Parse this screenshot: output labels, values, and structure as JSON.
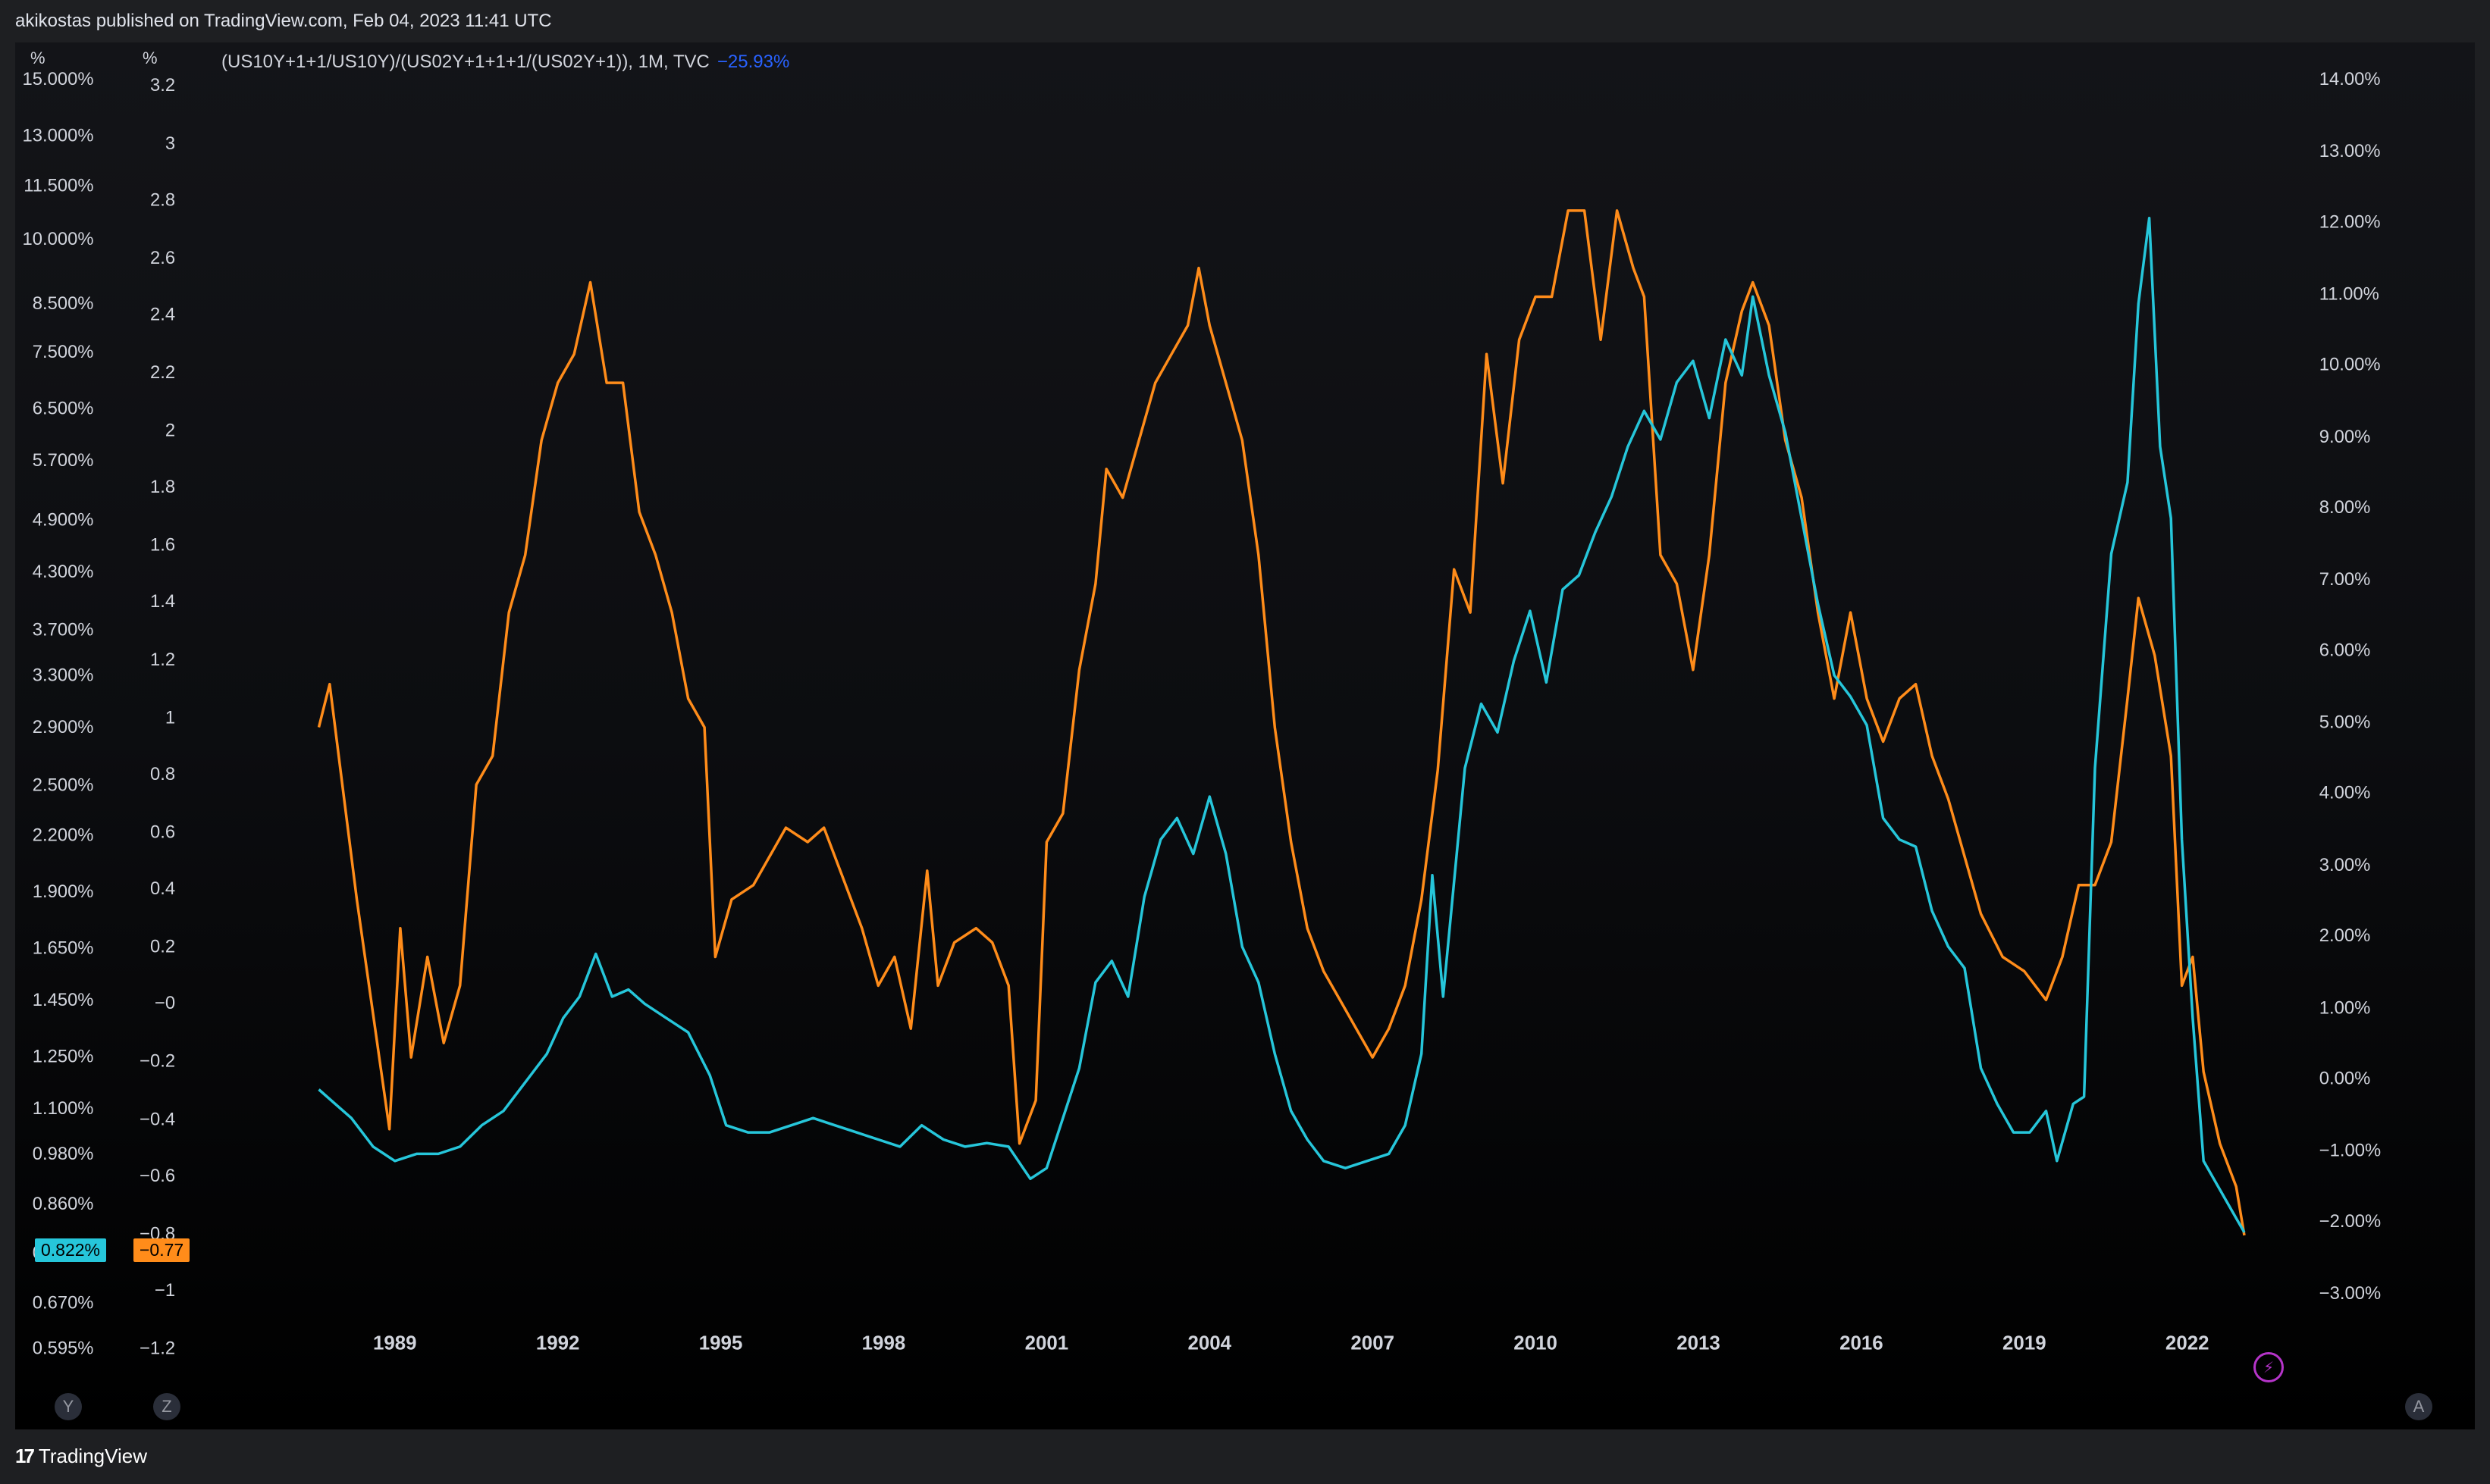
{
  "header": {
    "published_text": "akikostas published on TradingView.com, Feb 04, 2023 11:41 UTC"
  },
  "legend": {
    "text": "(US10Y+1+1/US10Y)/(US02Y+1+1+1/(US02Y+1)), 1M, TVC",
    "change": "−25.93%"
  },
  "axes": {
    "left1_unit": "%",
    "left2_unit": "%",
    "left1_ticks": [
      "15.000%",
      "13.000%",
      "11.500%",
      "10.000%",
      "8.500%",
      "7.500%",
      "6.500%",
      "5.700%",
      "4.900%",
      "4.300%",
      "3.700%",
      "3.300%",
      "2.900%",
      "2.500%",
      "2.200%",
      "1.900%",
      "1.650%",
      "1.450%",
      "1.250%",
      "1.100%",
      "0.980%",
      "0.860%",
      "0.760%",
      "0.670%",
      "0.595%"
    ],
    "left2_ticks": [
      "3.2",
      "3",
      "2.8",
      "2.6",
      "2.4",
      "2.2",
      "2",
      "1.8",
      "1.6",
      "1.4",
      "1.2",
      "1",
      "0.8",
      "0.6",
      "0.4",
      "0.2",
      "−0",
      "−0.2",
      "−0.4",
      "−0.6",
      "−0.8",
      "−1",
      "−1.2"
    ],
    "right_ticks": [
      "14.00%",
      "13.00%",
      "12.00%",
      "11.00%",
      "10.00%",
      "9.00%",
      "8.00%",
      "7.00%",
      "6.00%",
      "5.00%",
      "4.00%",
      "3.00%",
      "2.00%",
      "1.00%",
      "0.00%",
      "−1.00%",
      "−2.00%",
      "−3.00%"
    ],
    "x_ticks": [
      "1989",
      "1992",
      "1995",
      "1998",
      "2001",
      "2004",
      "2007",
      "2010",
      "2013",
      "2016",
      "2019",
      "2022"
    ]
  },
  "price_tags": {
    "cyan": "0.822%",
    "orange": "−0.77"
  },
  "scale_buttons": {
    "y": "Y",
    "z": "Z",
    "a": "A"
  },
  "footer": {
    "brand": "TradingView"
  },
  "colors": {
    "cyan": "#26c6da",
    "orange": "#ff8c1a",
    "change": "#2962ff"
  },
  "chart_data": {
    "type": "line",
    "x_range": [
      1987.5,
      2023.1
    ],
    "series": [
      {
        "color": "#ff8c1a",
        "axis": "left2",
        "points": [
          [
            1987.6,
            1.0
          ],
          [
            1987.8,
            1.15
          ],
          [
            1988.0,
            0.85
          ],
          [
            1988.3,
            0.4
          ],
          [
            1988.6,
            0.0
          ],
          [
            1988.9,
            -0.4
          ],
          [
            1989.1,
            0.3
          ],
          [
            1989.3,
            -0.15
          ],
          [
            1989.6,
            0.2
          ],
          [
            1989.9,
            -0.1
          ],
          [
            1990.2,
            0.1
          ],
          [
            1990.5,
            0.8
          ],
          [
            1990.8,
            0.9
          ],
          [
            1991.1,
            1.4
          ],
          [
            1991.4,
            1.6
          ],
          [
            1991.7,
            2.0
          ],
          [
            1992.0,
            2.2
          ],
          [
            1992.3,
            2.3
          ],
          [
            1992.6,
            2.55
          ],
          [
            1992.9,
            2.2
          ],
          [
            1993.2,
            2.2
          ],
          [
            1993.5,
            1.75
          ],
          [
            1993.8,
            1.6
          ],
          [
            1994.1,
            1.4
          ],
          [
            1994.4,
            1.1
          ],
          [
            1994.7,
            1.0
          ],
          [
            1994.9,
            0.2
          ],
          [
            1995.2,
            0.4
          ],
          [
            1995.6,
            0.45
          ],
          [
            1995.9,
            0.55
          ],
          [
            1996.2,
            0.65
          ],
          [
            1996.6,
            0.6
          ],
          [
            1996.9,
            0.65
          ],
          [
            1997.2,
            0.5
          ],
          [
            1997.6,
            0.3
          ],
          [
            1997.9,
            0.1
          ],
          [
            1998.2,
            0.2
          ],
          [
            1998.5,
            -0.05
          ],
          [
            1998.8,
            0.5
          ],
          [
            1999.0,
            0.1
          ],
          [
            1999.3,
            0.25
          ],
          [
            1999.7,
            0.3
          ],
          [
            2000.0,
            0.25
          ],
          [
            2000.3,
            0.1
          ],
          [
            2000.5,
            -0.45
          ],
          [
            2000.8,
            -0.3
          ],
          [
            2001.0,
            0.6
          ],
          [
            2001.3,
            0.7
          ],
          [
            2001.6,
            1.2
          ],
          [
            2001.9,
            1.5
          ],
          [
            2002.1,
            1.9
          ],
          [
            2002.4,
            1.8
          ],
          [
            2002.7,
            2.0
          ],
          [
            2003.0,
            2.2
          ],
          [
            2003.3,
            2.3
          ],
          [
            2003.6,
            2.4
          ],
          [
            2003.8,
            2.6
          ],
          [
            2004.0,
            2.4
          ],
          [
            2004.3,
            2.2
          ],
          [
            2004.6,
            2.0
          ],
          [
            2004.9,
            1.6
          ],
          [
            2005.2,
            1.0
          ],
          [
            2005.5,
            0.6
          ],
          [
            2005.8,
            0.3
          ],
          [
            2006.1,
            0.15
          ],
          [
            2006.4,
            0.05
          ],
          [
            2006.7,
            -0.05
          ],
          [
            2007.0,
            -0.15
          ],
          [
            2007.3,
            -0.05
          ],
          [
            2007.6,
            0.1
          ],
          [
            2007.9,
            0.4
          ],
          [
            2008.2,
            0.85
          ],
          [
            2008.5,
            1.55
          ],
          [
            2008.8,
            1.4
          ],
          [
            2009.1,
            2.3
          ],
          [
            2009.4,
            1.85
          ],
          [
            2009.7,
            2.35
          ],
          [
            2010.0,
            2.5
          ],
          [
            2010.3,
            2.5
          ],
          [
            2010.6,
            2.8
          ],
          [
            2010.9,
            2.8
          ],
          [
            2011.2,
            2.35
          ],
          [
            2011.5,
            2.8
          ],
          [
            2011.8,
            2.6
          ],
          [
            2012.0,
            2.5
          ],
          [
            2012.3,
            1.6
          ],
          [
            2012.6,
            1.5
          ],
          [
            2012.9,
            1.2
          ],
          [
            2013.2,
            1.6
          ],
          [
            2013.5,
            2.2
          ],
          [
            2013.8,
            2.45
          ],
          [
            2014.0,
            2.55
          ],
          [
            2014.3,
            2.4
          ],
          [
            2014.6,
            2.0
          ],
          [
            2014.9,
            1.8
          ],
          [
            2015.2,
            1.4
          ],
          [
            2015.5,
            1.1
          ],
          [
            2015.8,
            1.4
          ],
          [
            2016.1,
            1.1
          ],
          [
            2016.4,
            0.95
          ],
          [
            2016.7,
            1.1
          ],
          [
            2017.0,
            1.15
          ],
          [
            2017.3,
            0.9
          ],
          [
            2017.6,
            0.75
          ],
          [
            2017.9,
            0.55
          ],
          [
            2018.2,
            0.35
          ],
          [
            2018.6,
            0.2
          ],
          [
            2019.0,
            0.15
          ],
          [
            2019.4,
            0.05
          ],
          [
            2019.7,
            0.2
          ],
          [
            2020.0,
            0.45
          ],
          [
            2020.3,
            0.45
          ],
          [
            2020.6,
            0.6
          ],
          [
            2020.9,
            1.1
          ],
          [
            2021.1,
            1.45
          ],
          [
            2021.4,
            1.25
          ],
          [
            2021.7,
            0.9
          ],
          [
            2021.9,
            0.1
          ],
          [
            2022.1,
            0.2
          ],
          [
            2022.3,
            -0.2
          ],
          [
            2022.6,
            -0.45
          ],
          [
            2022.9,
            -0.6
          ],
          [
            2023.05,
            -0.77
          ]
        ]
      },
      {
        "color": "#26c6da",
        "axis": "right",
        "points": [
          [
            1987.6,
            0.0
          ],
          [
            1987.9,
            -0.2
          ],
          [
            1988.2,
            -0.4
          ],
          [
            1988.6,
            -0.8
          ],
          [
            1989.0,
            -1.0
          ],
          [
            1989.4,
            -0.9
          ],
          [
            1989.8,
            -0.9
          ],
          [
            1990.2,
            -0.8
          ],
          [
            1990.6,
            -0.5
          ],
          [
            1991.0,
            -0.3
          ],
          [
            1991.4,
            0.1
          ],
          [
            1991.8,
            0.5
          ],
          [
            1992.1,
            1.0
          ],
          [
            1992.4,
            1.3
          ],
          [
            1992.7,
            1.9
          ],
          [
            1993.0,
            1.3
          ],
          [
            1993.3,
            1.4
          ],
          [
            1993.6,
            1.2
          ],
          [
            1994.0,
            1.0
          ],
          [
            1994.4,
            0.8
          ],
          [
            1994.8,
            0.2
          ],
          [
            1995.1,
            -0.5
          ],
          [
            1995.5,
            -0.6
          ],
          [
            1995.9,
            -0.6
          ],
          [
            1996.3,
            -0.5
          ],
          [
            1996.7,
            -0.4
          ],
          [
            1997.1,
            -0.5
          ],
          [
            1997.5,
            -0.6
          ],
          [
            1997.9,
            -0.7
          ],
          [
            1998.3,
            -0.8
          ],
          [
            1998.7,
            -0.5
          ],
          [
            1999.1,
            -0.7
          ],
          [
            1999.5,
            -0.8
          ],
          [
            1999.9,
            -0.75
          ],
          [
            2000.3,
            -0.8
          ],
          [
            2000.7,
            -1.25
          ],
          [
            2001.0,
            -1.1
          ],
          [
            2001.3,
            -0.4
          ],
          [
            2001.6,
            0.3
          ],
          [
            2001.9,
            1.5
          ],
          [
            2002.2,
            1.8
          ],
          [
            2002.5,
            1.3
          ],
          [
            2002.8,
            2.7
          ],
          [
            2003.1,
            3.5
          ],
          [
            2003.4,
            3.8
          ],
          [
            2003.7,
            3.3
          ],
          [
            2004.0,
            4.1
          ],
          [
            2004.3,
            3.3
          ],
          [
            2004.6,
            2.0
          ],
          [
            2004.9,
            1.5
          ],
          [
            2005.2,
            0.5
          ],
          [
            2005.5,
            -0.3
          ],
          [
            2005.8,
            -0.7
          ],
          [
            2006.1,
            -1.0
          ],
          [
            2006.5,
            -1.1
          ],
          [
            2006.9,
            -1.0
          ],
          [
            2007.3,
            -0.9
          ],
          [
            2007.6,
            -0.5
          ],
          [
            2007.9,
            0.5
          ],
          [
            2008.1,
            3.0
          ],
          [
            2008.3,
            1.3
          ],
          [
            2008.7,
            4.5
          ],
          [
            2009.0,
            5.4
          ],
          [
            2009.3,
            5.0
          ],
          [
            2009.6,
            6.0
          ],
          [
            2009.9,
            6.7
          ],
          [
            2010.2,
            5.7
          ],
          [
            2010.5,
            7.0
          ],
          [
            2010.8,
            7.2
          ],
          [
            2011.1,
            7.8
          ],
          [
            2011.4,
            8.3
          ],
          [
            2011.7,
            9.0
          ],
          [
            2012.0,
            9.5
          ],
          [
            2012.3,
            9.1
          ],
          [
            2012.6,
            9.9
          ],
          [
            2012.9,
            10.2
          ],
          [
            2013.2,
            9.4
          ],
          [
            2013.5,
            10.5
          ],
          [
            2013.8,
            10.0
          ],
          [
            2014.0,
            11.1
          ],
          [
            2014.3,
            10.0
          ],
          [
            2014.6,
            9.2
          ],
          [
            2014.9,
            8.0
          ],
          [
            2015.2,
            6.8
          ],
          [
            2015.5,
            5.8
          ],
          [
            2015.8,
            5.5
          ],
          [
            2016.1,
            5.1
          ],
          [
            2016.4,
            3.8
          ],
          [
            2016.7,
            3.5
          ],
          [
            2017.0,
            3.4
          ],
          [
            2017.3,
            2.5
          ],
          [
            2017.6,
            2.0
          ],
          [
            2017.9,
            1.7
          ],
          [
            2018.2,
            0.3
          ],
          [
            2018.5,
            -0.2
          ],
          [
            2018.8,
            -0.6
          ],
          [
            2019.1,
            -0.6
          ],
          [
            2019.4,
            -0.3
          ],
          [
            2019.6,
            -1.0
          ],
          [
            2019.9,
            -0.2
          ],
          [
            2020.1,
            -0.1
          ],
          [
            2020.3,
            4.5
          ],
          [
            2020.6,
            7.5
          ],
          [
            2020.9,
            8.5
          ],
          [
            2021.1,
            11.0
          ],
          [
            2021.3,
            12.2
          ],
          [
            2021.5,
            9.0
          ],
          [
            2021.7,
            8.0
          ],
          [
            2021.9,
            3.5
          ],
          [
            2022.1,
            1.0
          ],
          [
            2022.3,
            -1.0
          ],
          [
            2022.6,
            -1.4
          ],
          [
            2022.9,
            -1.8
          ],
          [
            2023.05,
            -2.0
          ]
        ]
      }
    ]
  }
}
